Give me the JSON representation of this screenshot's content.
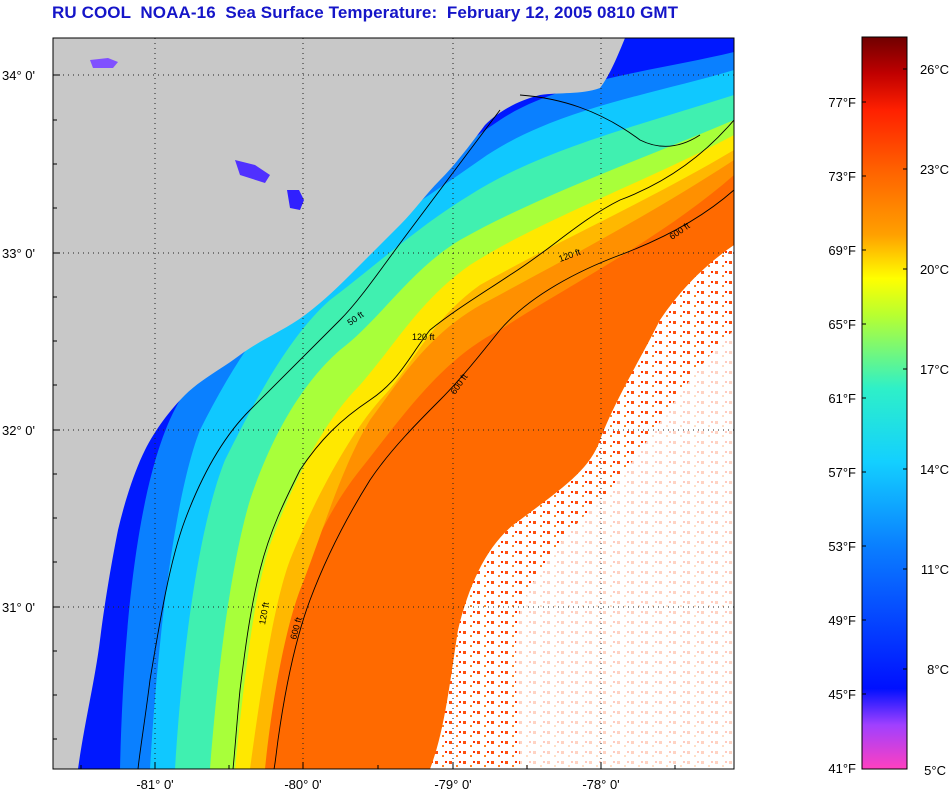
{
  "title": "RU COOL  NOAA-16  Sea Surface Temperature:  February 12, 2005 0810 GMT",
  "map": {
    "lat_ticks": [
      "34° 0'",
      "33° 0'",
      "32° 0'",
      "31° 0'"
    ],
    "lon_ticks": [
      "-81° 0'",
      "-80° 0'",
      "-79° 0'",
      "-78° 0'"
    ],
    "contour_labels": [
      "50 ft",
      "120 ft",
      "600 ft"
    ],
    "colors": {
      "land": "#c8c8c8",
      "cloud": "#ffffff",
      "gridline": "#000000"
    }
  },
  "colorbar": {
    "fahrenheit_labels": [
      "77°F",
      "73°F",
      "69°F",
      "65°F",
      "61°F",
      "57°F",
      "53°F",
      "49°F",
      "45°F",
      "41°F"
    ],
    "celsius_labels": [
      "26°C",
      "23°C",
      "20°C",
      "17°C",
      "14°C",
      "11°C",
      "8°C",
      "5°C"
    ],
    "colors": [
      "#ff40c0",
      "#a040ff",
      "#0010ff",
      "#0a7cff",
      "#13d0ff",
      "#2ef0c8",
      "#b8ff30",
      "#ffff00",
      "#ffa000",
      "#ff6000",
      "#ff2000",
      "#c00000",
      "#700000"
    ]
  }
}
